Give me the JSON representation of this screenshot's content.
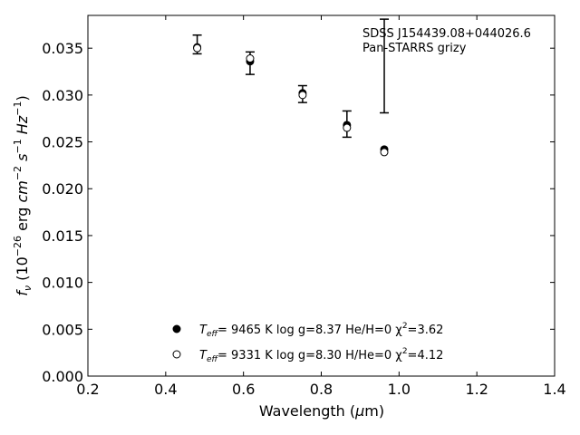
{
  "chart_data": {
    "type": "scatter",
    "title": "",
    "xlabel": "Wavelength (μm)",
    "ylabel": "f_ν (10^-26 erg cm^-2 s^-1 Hz^-1)",
    "xlim": [
      0.2,
      1.4
    ],
    "ylim": [
      0.0,
      0.0385
    ],
    "x_ticks": [
      0.2,
      0.4,
      0.6,
      0.8,
      1.0,
      1.2,
      1.4
    ],
    "x_tick_labels": [
      "0.2",
      "0.4",
      "0.6",
      "0.8",
      "1.0",
      "1.2",
      "1.4"
    ],
    "y_ticks": [
      0.0,
      0.005,
      0.01,
      0.015,
      0.02,
      0.025,
      0.03,
      0.035
    ],
    "y_tick_labels": [
      "0.000",
      "0.005",
      "0.010",
      "0.015",
      "0.020",
      "0.025",
      "0.030",
      "0.035"
    ],
    "grid": false,
    "annotation": [
      "SDSS J154439.08+044026.6",
      "Pan-STARRS grizy"
    ],
    "observed": {
      "x": [
        0.481,
        0.617,
        0.752,
        0.866,
        0.962
      ],
      "y": [
        0.0354,
        0.0334,
        0.0301,
        0.0269,
        0.0331
      ],
      "yerr_low": [
        0.001,
        0.0012,
        0.0009,
        0.0014,
        0.005
      ],
      "yerr_high": [
        0.001,
        0.0012,
        0.0009,
        0.0014,
        0.005
      ]
    },
    "series": [
      {
        "marker": "filled-circle",
        "legend": {
          "teff_label": "T",
          "teff_sub": "eff",
          "rest": "=  9465 K  log g=8.37  He/H=0  χ",
          "chi_sup": "2",
          "chi_val": "=3.62"
        },
        "x": [
          0.481,
          0.617,
          0.752,
          0.866,
          0.962
        ],
        "y": [
          0.0351,
          0.0336,
          0.0302,
          0.0268,
          0.0242
        ]
      },
      {
        "marker": "open-circle",
        "legend": {
          "teff_label": "T",
          "teff_sub": "eff",
          "rest": "=  9331 K  log g=8.30  H/He=0  χ",
          "chi_sup": "2",
          "chi_val": "=4.12"
        },
        "x": [
          0.481,
          0.617,
          0.752,
          0.866,
          0.962
        ],
        "y": [
          0.035,
          0.0339,
          0.03,
          0.0265,
          0.0239
        ]
      }
    ]
  }
}
